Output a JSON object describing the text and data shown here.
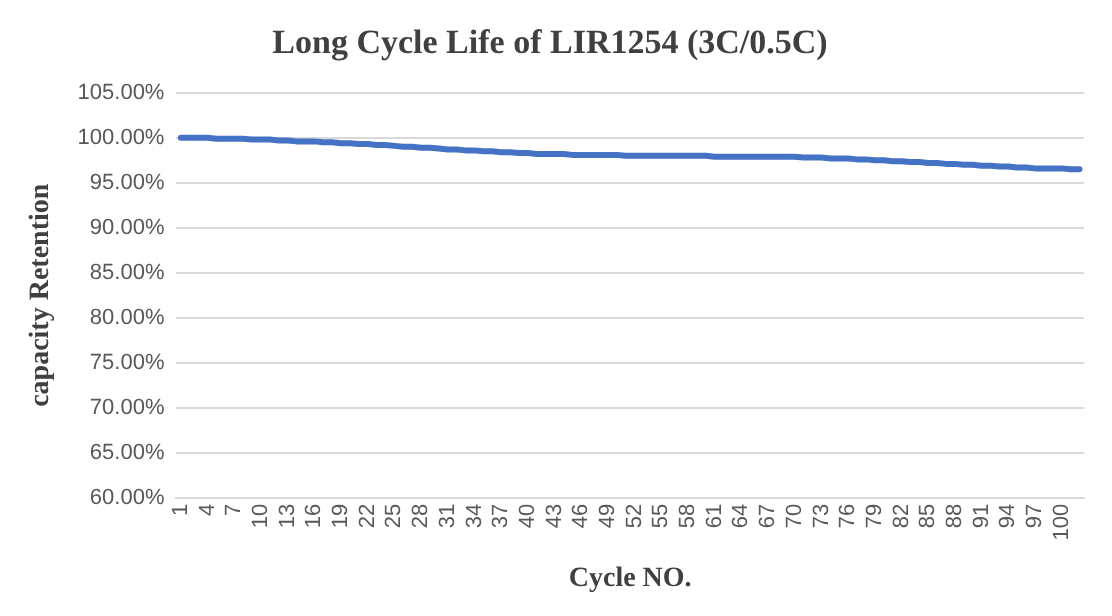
{
  "chart_data": {
    "type": "line",
    "title": "Long Cycle Life of LIR1254 (3C/0.5C)",
    "xlabel": "Cycle NO.",
    "ylabel": "capacity Retention",
    "categories": [
      "1",
      null,
      null,
      "4",
      null,
      null,
      "7",
      null,
      null,
      "10",
      null,
      null,
      "13",
      null,
      null,
      "16",
      null,
      null,
      "19",
      null,
      null,
      "22",
      null,
      null,
      "25",
      null,
      null,
      "28",
      null,
      null,
      "31",
      null,
      null,
      "34",
      null,
      null,
      "37",
      null,
      null,
      "40",
      null,
      null,
      "43",
      null,
      null,
      "46",
      null,
      null,
      "49",
      null,
      null,
      "52",
      null,
      null,
      "55",
      null,
      null,
      "58",
      null,
      null,
      "61",
      null,
      null,
      "64",
      null,
      null,
      "67",
      null,
      null,
      "70",
      null,
      null,
      "73",
      null,
      null,
      "76",
      null,
      null,
      "79",
      null,
      null,
      "82",
      null,
      null,
      "85",
      null,
      null,
      "88",
      null,
      null,
      "91",
      null,
      null,
      "94",
      null,
      null,
      "97",
      null,
      null,
      "100",
      null,
      null
    ],
    "series": [
      {
        "color": "#4472c4",
        "values": [
          100.0,
          100.0,
          100.0,
          100.0,
          99.9,
          99.9,
          99.9,
          99.9,
          99.8,
          99.8,
          99.8,
          99.7,
          99.7,
          99.6,
          99.6,
          99.6,
          99.5,
          99.5,
          99.4,
          99.4,
          99.3,
          99.3,
          99.2,
          99.2,
          99.1,
          99.0,
          99.0,
          98.9,
          98.9,
          98.8,
          98.7,
          98.7,
          98.6,
          98.6,
          98.5,
          98.5,
          98.4,
          98.4,
          98.3,
          98.3,
          98.2,
          98.2,
          98.2,
          98.2,
          98.1,
          98.1,
          98.1,
          98.1,
          98.1,
          98.1,
          98.0,
          98.0,
          98.0,
          98.0,
          98.0,
          98.0,
          98.0,
          98.0,
          98.0,
          98.0,
          97.9,
          97.9,
          97.9,
          97.9,
          97.9,
          97.9,
          97.9,
          97.9,
          97.9,
          97.9,
          97.8,
          97.8,
          97.8,
          97.7,
          97.7,
          97.7,
          97.6,
          97.6,
          97.5,
          97.5,
          97.4,
          97.4,
          97.3,
          97.3,
          97.2,
          97.2,
          97.1,
          97.1,
          97.0,
          97.0,
          96.9,
          96.9,
          96.8,
          96.8,
          96.7,
          96.7,
          96.6,
          96.6,
          96.6,
          96.6,
          96.5,
          96.5
        ]
      }
    ],
    "ylim": [
      60,
      105
    ],
    "yticks": [
      {
        "value": 60,
        "label": "60.00%"
      },
      {
        "value": 65,
        "label": "65.00%"
      },
      {
        "value": 70,
        "label": "70.00%"
      },
      {
        "value": 75,
        "label": "75.00%"
      },
      {
        "value": 80,
        "label": "80.00%"
      },
      {
        "value": 85,
        "label": "85.00%"
      },
      {
        "value": 90,
        "label": "90.00%"
      },
      {
        "value": 95,
        "label": "95.00%"
      },
      {
        "value": 100,
        "label": "100.00%"
      },
      {
        "value": 105,
        "label": "105.00%"
      }
    ],
    "grid": "y",
    "marker": "none"
  }
}
